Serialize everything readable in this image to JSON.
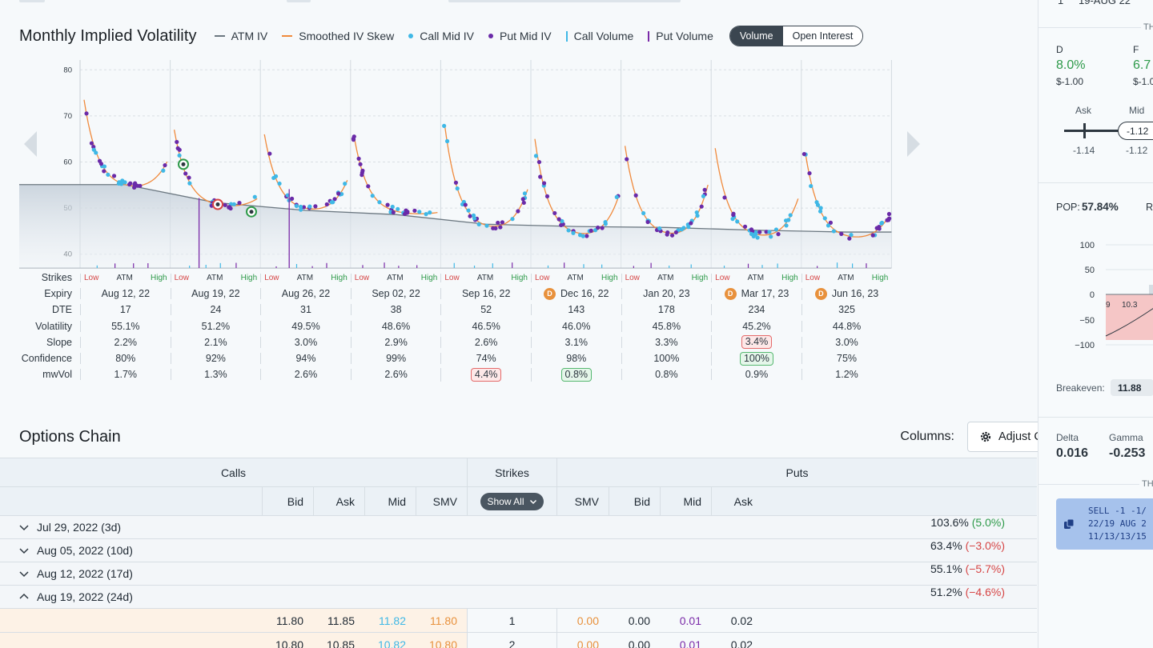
{
  "chart": {
    "title": "Monthly Implied Volatility",
    "legend": [
      {
        "label": "ATM IV",
        "kind": "line",
        "color": "#6b7780"
      },
      {
        "label": "Smoothed IV Skew",
        "kind": "line",
        "color": "#f08a3c"
      },
      {
        "label": "Call Mid IV",
        "kind": "dot",
        "color": "#3fb8e6"
      },
      {
        "label": "Put Mid IV",
        "kind": "dot",
        "color": "#6a2aa8"
      },
      {
        "label": "Call Volume",
        "kind": "bar",
        "color": "#3fb8e6"
      },
      {
        "label": "Put Volume",
        "kind": "bar",
        "color": "#7a2aa8"
      }
    ],
    "toggle": {
      "active": "Volume",
      "inactive": "Open Interest"
    }
  },
  "chart_data": {
    "type": "scatter",
    "y_ticks": [
      "80",
      "70",
      "60",
      "50",
      "40"
    ],
    "ylim": [
      37,
      83
    ],
    "expiries": [
      "Aug 12, 22",
      "Aug 19, 22",
      "Aug 26, 22",
      "Sep 02, 22",
      "Sep 16, 22",
      "Dec 16, 22",
      "Jan 20, 23",
      "Mar 17, 23",
      "Jun 16, 23"
    ],
    "atm_iv": [
      55.1,
      51.2,
      49.5,
      48.6,
      46.5,
      46.0,
      45.8,
      45.2,
      44.8
    ],
    "skew_start": [
      73.5,
      67,
      66,
      65,
      68,
      65,
      63.5,
      63,
      62
    ],
    "skew_min": [
      54,
      50,
      49,
      48.5,
      45,
      43.5,
      43.5,
      43.2,
      43
    ],
    "skew_end": [
      60,
      52,
      56,
      49,
      54,
      52,
      55,
      52,
      48
    ],
    "put_volume_spikes": [
      {
        "expiry_index": 1,
        "height": 0.55
      },
      {
        "expiry_index": 2,
        "height": 0.62
      }
    ]
  },
  "stats": {
    "labels": [
      "Strikes",
      "Expiry",
      "DTE",
      "Volatility",
      "Slope",
      "Confidence",
      "mwVol"
    ],
    "strike_labels": {
      "low": "Low",
      "atm": "ATM",
      "high": "High"
    },
    "columns": [
      {
        "expiry": "Aug 12, 22",
        "div": false,
        "dte": "17",
        "vol": "55.1%",
        "slope": "2.2%",
        "conf": "80%",
        "mwvol": "1.7%",
        "slope_badge": "",
        "conf_badge": "",
        "mw_badge": ""
      },
      {
        "expiry": "Aug 19, 22",
        "div": false,
        "dte": "24",
        "vol": "51.2%",
        "slope": "2.1%",
        "conf": "92%",
        "mwvol": "1.3%",
        "slope_badge": "",
        "conf_badge": "",
        "mw_badge": ""
      },
      {
        "expiry": "Aug 26, 22",
        "div": false,
        "dte": "31",
        "vol": "49.5%",
        "slope": "3.0%",
        "conf": "94%",
        "mwvol": "2.6%",
        "slope_badge": "",
        "conf_badge": "",
        "mw_badge": ""
      },
      {
        "expiry": "Sep 02, 22",
        "div": false,
        "dte": "38",
        "vol": "48.6%",
        "slope": "2.9%",
        "conf": "99%",
        "mwvol": "2.6%",
        "slope_badge": "",
        "conf_badge": "",
        "mw_badge": ""
      },
      {
        "expiry": "Sep 16, 22",
        "div": false,
        "dte": "52",
        "vol": "46.5%",
        "slope": "2.6%",
        "conf": "74%",
        "mwvol": "4.4%",
        "slope_badge": "",
        "conf_badge": "",
        "mw_badge": "red"
      },
      {
        "expiry": "Dec 16, 22",
        "div": true,
        "dte": "143",
        "vol": "46.0%",
        "slope": "3.1%",
        "conf": "98%",
        "mwvol": "0.8%",
        "slope_badge": "",
        "conf_badge": "",
        "mw_badge": "green"
      },
      {
        "expiry": "Jan 20, 23",
        "div": false,
        "dte": "178",
        "vol": "45.8%",
        "slope": "3.3%",
        "conf": "100%",
        "mwvol": "0.8%",
        "slope_badge": "",
        "conf_badge": "",
        "mw_badge": ""
      },
      {
        "expiry": "Mar 17, 23",
        "div": true,
        "dte": "234",
        "vol": "45.2%",
        "slope": "3.4%",
        "conf": "100%",
        "mwvol": "0.9%",
        "slope_badge": "red",
        "conf_badge": "green",
        "mw_badge": ""
      },
      {
        "expiry": "Jun 16, 23",
        "div": true,
        "dte": "325",
        "vol": "44.8%",
        "slope": "3.0%",
        "conf": "75%",
        "mwvol": "1.2%",
        "slope_badge": "",
        "conf_badge": "",
        "mw_badge": ""
      }
    ],
    "div_label": "D"
  },
  "options_chain": {
    "title": "Options Chain",
    "columns_label": "Columns:",
    "adjust_label": "Adjust Columns",
    "calls_label": "Calls",
    "strikes_label": "Strikes",
    "puts_label": "Puts",
    "show_all": "Show All",
    "call_headers": [
      "Bid",
      "Ask",
      "Mid",
      "SMV"
    ],
    "put_headers": [
      "SMV",
      "Bid",
      "Mid",
      "Ask"
    ],
    "expirations": [
      {
        "label": "Jul 29, 2022 (3d)",
        "iv": "103.6%",
        "chg": "(5.0%)",
        "dir": "pos",
        "open": false
      },
      {
        "label": "Aug 05, 2022 (10d)",
        "iv": "63.4%",
        "chg": "(−3.0%)",
        "dir": "neg",
        "open": false
      },
      {
        "label": "Aug 12, 2022 (17d)",
        "iv": "55.1%",
        "chg": "(−5.7%)",
        "dir": "neg",
        "open": false
      },
      {
        "label": "Aug 19, 2022 (24d)",
        "iv": "51.2%",
        "chg": "(−4.6%)",
        "dir": "neg",
        "open": true
      }
    ],
    "rows": [
      {
        "call_bid": "11.80",
        "call_ask": "11.85",
        "call_mid": "11.82",
        "call_smv": "11.80",
        "strike": "1",
        "put_smv": "0.00",
        "put_bid": "0.00",
        "put_mid": "0.01",
        "put_ask": "0.02"
      },
      {
        "call_bid": "10.80",
        "call_ask": "10.85",
        "call_mid": "10.82",
        "call_smv": "10.80",
        "strike": "2",
        "put_smv": "0.00",
        "put_bid": "0.00",
        "put_mid": "0.01",
        "put_ask": "0.02"
      }
    ]
  },
  "right_panel": {
    "top_date": "19-AUG 22",
    "top_num": "1",
    "th_label": "TH",
    "col_d": "D",
    "col_f": "F",
    "d_pct": "8.0%",
    "f_pct": "6.7",
    "d_val": "$-1.00",
    "f_val": "$-1.0",
    "ask_label": "Ask",
    "mid_label": "Mid",
    "mid_value": "-1.12",
    "ask_value": "-1.14",
    "mid_value2": "-1.12",
    "pop_label": "POP:",
    "pop_value": "57.84%",
    "r_label": "R",
    "pnl_ticks": [
      "100",
      "50",
      "0",
      "−50",
      "−100"
    ],
    "pnl_x1": "9",
    "pnl_x2": "10.3",
    "breakeven_label": "Breakeven:",
    "breakeven_value": "11.88",
    "delta_label": "Delta",
    "gamma_label": "Gamma",
    "delta_value": "0.016",
    "gamma_value": "-0.253",
    "th2_label": "TH",
    "order_line1": "SELL -1 -1/",
    "order_line2": "22/19 AUG 2",
    "order_line3": "11/13/13/15"
  }
}
